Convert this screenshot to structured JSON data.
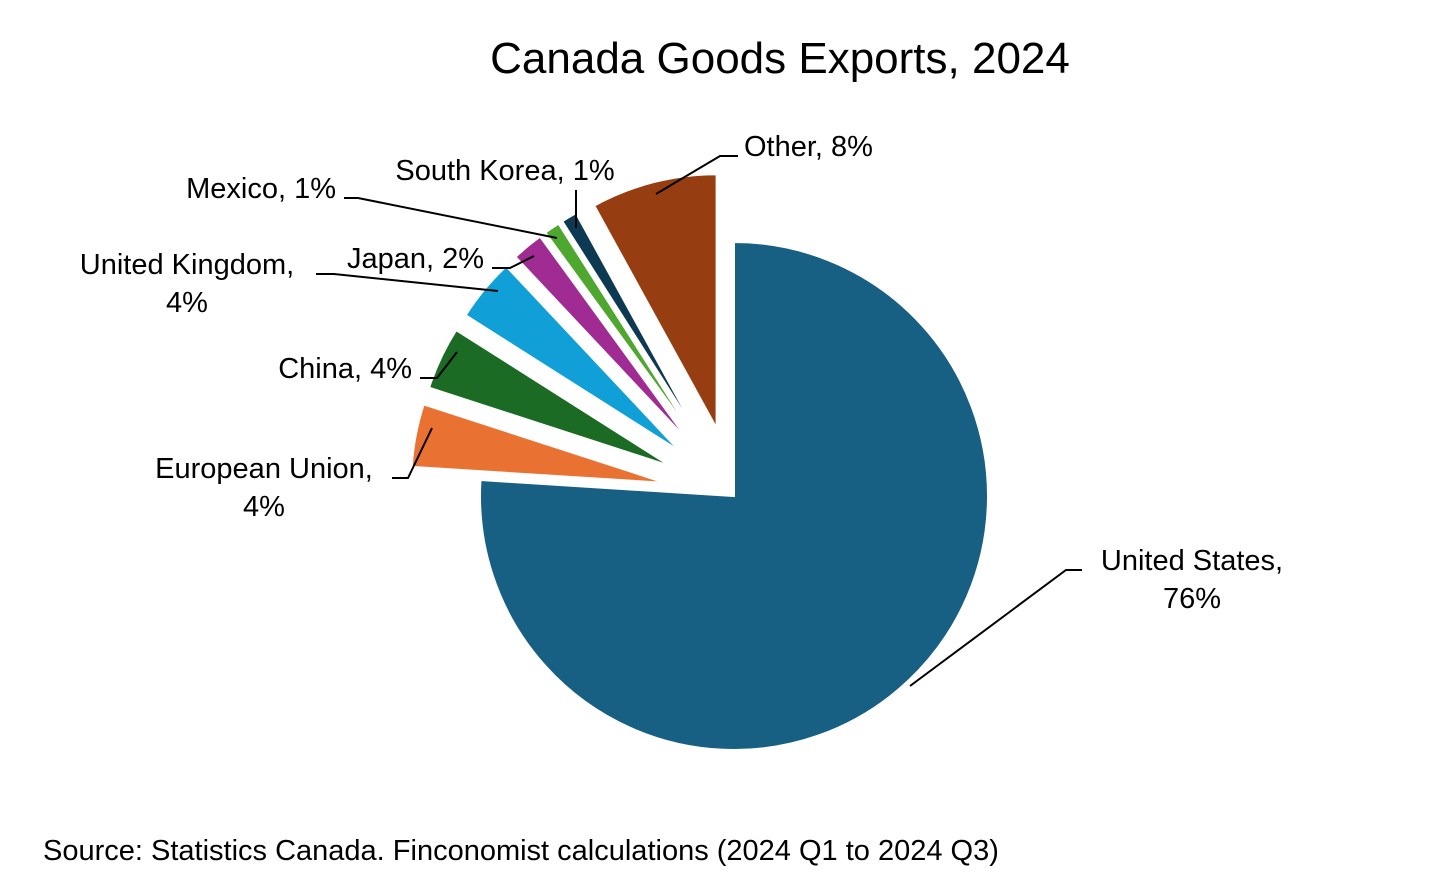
{
  "chart_data": {
    "type": "pie",
    "title": "Canada Goods Exports, 2024",
    "slices": [
      {
        "name": "United States",
        "value": 76,
        "label_lines": [
          "United States,",
          "76%"
        ],
        "color": "#175F83"
      },
      {
        "name": "European Union",
        "value": 4,
        "label_lines": [
          "European Union,",
          "4%"
        ],
        "color": "#E97132"
      },
      {
        "name": "China",
        "value": 4,
        "label_lines": [
          "China, 4%"
        ],
        "color": "#1C6B25"
      },
      {
        "name": "United Kingdom",
        "value": 4,
        "label_lines": [
          "United Kingdom,",
          "4%"
        ],
        "color": "#119FD7"
      },
      {
        "name": "Japan",
        "value": 2,
        "label_lines": [
          "Japan, 2%"
        ],
        "color": "#A02B93"
      },
      {
        "name": "Mexico",
        "value": 1,
        "label_lines": [
          "Mexico, 1%"
        ],
        "color": "#4EA72E"
      },
      {
        "name": "South Korea",
        "value": 1,
        "label_lines": [
          "South Korea, 1%"
        ],
        "color": "#0D3A52"
      },
      {
        "name": "Other",
        "value": 8,
        "label_lines": [
          "Other, 8%"
        ],
        "color": "#963E11"
      }
    ],
    "legend": "none",
    "data_labels": "outside with leader lines"
  },
  "source": "Source: Statistics Canada. Finconomist calculations (2024 Q1 to 2024 Q3)"
}
